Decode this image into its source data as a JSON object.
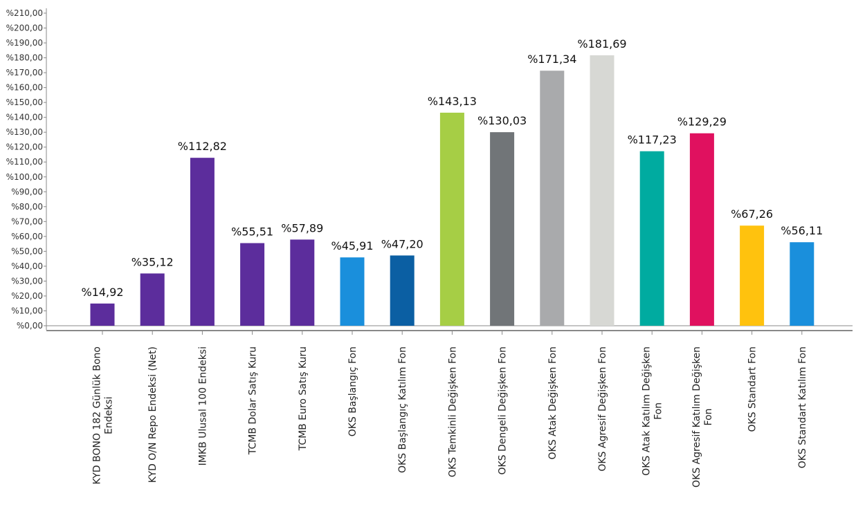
{
  "chart_data": {
    "type": "bar",
    "ylim": [
      0,
      210
    ],
    "ytick_step": 10,
    "ytick_prefix": "%",
    "ytick_decimals": 2,
    "decimal_separator": ",",
    "grid": false,
    "categories": [
      [
        "KYD BONO 182 Günlük Bono",
        "Endeksi"
      ],
      [
        "KYD O/N Repo Endeksi (Net)"
      ],
      [
        "IMKB Ulusal 100 Endeksi"
      ],
      [
        "TCMB Dolar Satış Kuru"
      ],
      [
        "TCMB Euro Satış Kuru"
      ],
      [
        "OKS Başlangıç Fon"
      ],
      [
        "OKS Başlangıç Katılım Fon"
      ],
      [
        "OKS Temkinli Değişken Fon"
      ],
      [
        "OKS Dengeli Değişken Fon"
      ],
      [
        "OKS Atak Değişken Fon"
      ],
      [
        "OKS Agresif Değişken Fon"
      ],
      [
        "OKS Atak Katılım Değişken",
        "Fon"
      ],
      [
        "OKS Agresif Katılım Değişken",
        "Fon"
      ],
      [
        "OKS Standart Fon"
      ],
      [
        "OKS Standart Katılım Fon"
      ]
    ],
    "values": [
      14.92,
      35.12,
      112.82,
      55.51,
      57.89,
      45.91,
      47.2,
      143.13,
      130.03,
      171.34,
      181.69,
      117.23,
      129.29,
      67.26,
      56.11
    ],
    "data_labels": [
      "%14,92",
      "%35,12",
      "%112,82",
      "%55,51",
      "%57,89",
      "%45,91",
      "%47,20",
      "%143,13",
      "%130,03",
      "%171,34",
      "%181,69",
      "%117,23",
      "%129,29",
      "%67,26",
      "%56,11"
    ],
    "colors": [
      "#5c2d9c",
      "#5c2d9c",
      "#5c2d9c",
      "#5c2d9c",
      "#5c2d9c",
      "#1a8fdc",
      "#0b5fa3",
      "#a6ce45",
      "#717578",
      "#a9aaac",
      "#d7d8d4",
      "#00aba0",
      "#e0115f",
      "#ffc20e",
      "#1a8fdc"
    ],
    "axis_color": "#888888"
  }
}
